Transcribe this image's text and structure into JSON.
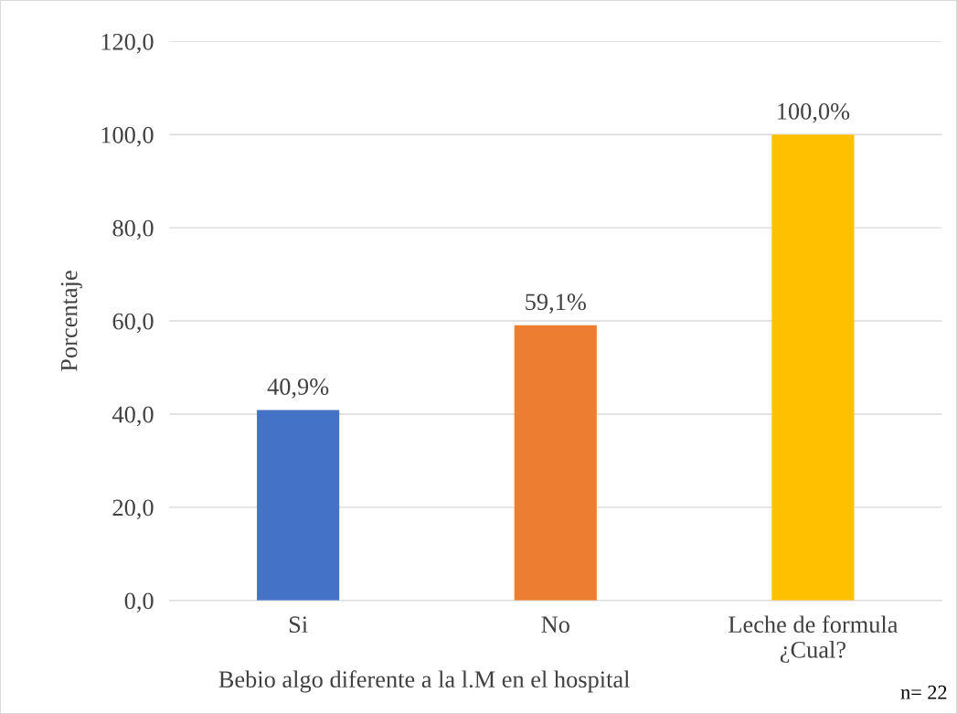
{
  "chart_data": {
    "type": "bar",
    "categories": [
      "Si",
      "No",
      "Leche de formula\n¿Cual?"
    ],
    "values": [
      40.9,
      59.1,
      100.0
    ],
    "colors": [
      "#4472c4",
      "#ed7d31",
      "#ffc000"
    ],
    "value_labels": [
      "40,9%",
      "59,1%",
      "100,0%"
    ],
    "xlabel": "Bebio algo diferente a la l.M en el hospital",
    "ylabel": "Porcentaje",
    "ylim": [
      0,
      120
    ],
    "yticks": [
      {
        "value": 0,
        "label": "0,0"
      },
      {
        "value": 20,
        "label": "20,0"
      },
      {
        "value": 40,
        "label": "40,0"
      },
      {
        "value": 60,
        "label": "60,0"
      },
      {
        "value": 80,
        "label": "80,0"
      },
      {
        "value": 100,
        "label": "100,0"
      },
      {
        "value": 120,
        "label": "120,0"
      }
    ],
    "grid": "y",
    "annotations": [
      "n= 22"
    ]
  }
}
